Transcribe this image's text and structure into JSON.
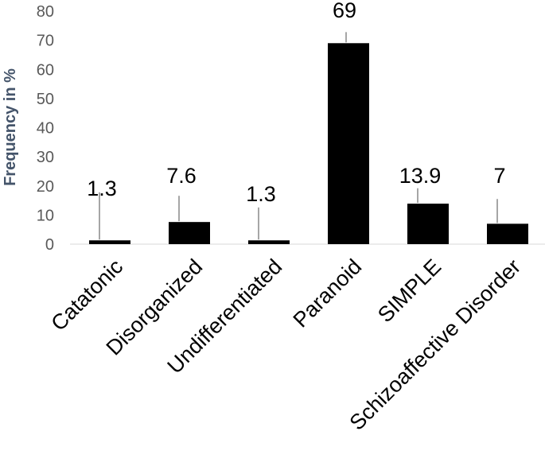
{
  "chart_data": {
    "type": "bar",
    "title": "",
    "xlabel": "",
    "ylabel": "Frequency in %",
    "ylim": [
      0,
      80
    ],
    "yticks": [
      0,
      10,
      20,
      30,
      40,
      50,
      60,
      70,
      80
    ],
    "categories": [
      "Catatonic",
      "Disorganized",
      "Undifferentiated",
      "Paranoid",
      "SIMPLE",
      "Schizoaffective Disorder"
    ],
    "values": [
      1.3,
      7.6,
      1.3,
      69,
      13.9,
      7
    ],
    "data_labels": [
      "1.3",
      "7.6",
      "1.3",
      "69",
      "13.9",
      "7"
    ],
    "grid": false,
    "legend": "none",
    "colors": {
      "bar": "#000000",
      "leader_line": "#a6a6a6",
      "axis_text": "#595959",
      "ylabel": "#44546a",
      "baseline": "#d9d9d9"
    }
  }
}
